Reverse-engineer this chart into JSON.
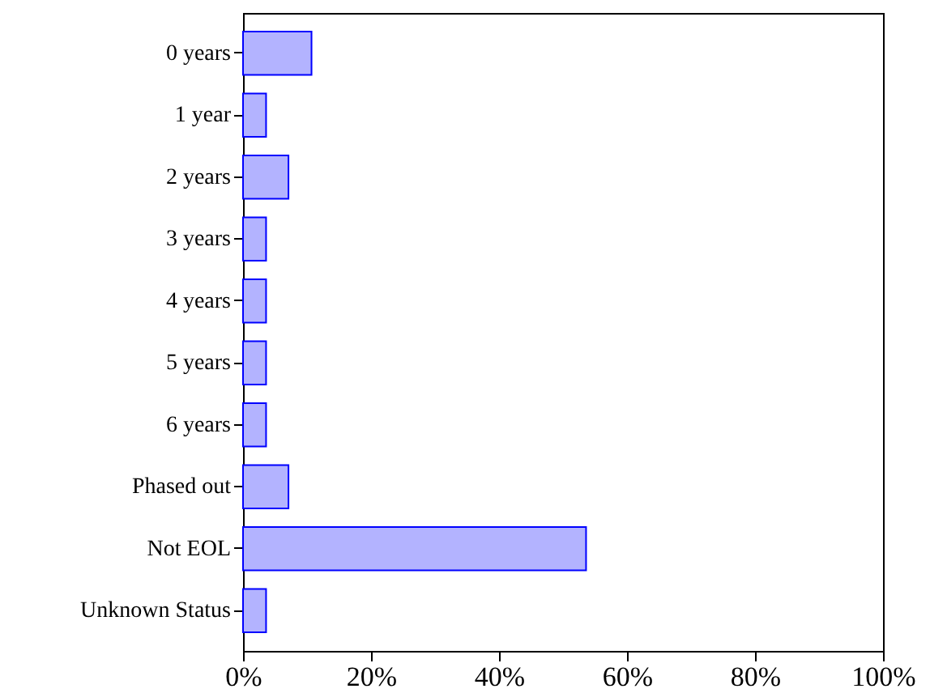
{
  "chart_data": {
    "type": "bar",
    "orientation": "horizontal",
    "categories": [
      "0 years",
      "1 year",
      "2 years",
      "3 years",
      "4 years",
      "5 years",
      "6 years",
      "Phased out",
      "Not EOL",
      "Unknown Status"
    ],
    "values": [
      10.7,
      3.6,
      7.1,
      3.6,
      3.6,
      3.6,
      3.6,
      7.1,
      53.6,
      3.6
    ],
    "color": "#b3b3ff",
    "xlim": [
      0,
      100
    ],
    "xticks": [
      {
        "value": 0,
        "label": "0%"
      },
      {
        "value": 20,
        "label": "20%"
      },
      {
        "value": 40,
        "label": "40%"
      },
      {
        "value": 60,
        "label": "60%"
      },
      {
        "value": 80,
        "label": "80%"
      },
      {
        "value": 100,
        "label": "100%"
      }
    ],
    "grid": false
  }
}
